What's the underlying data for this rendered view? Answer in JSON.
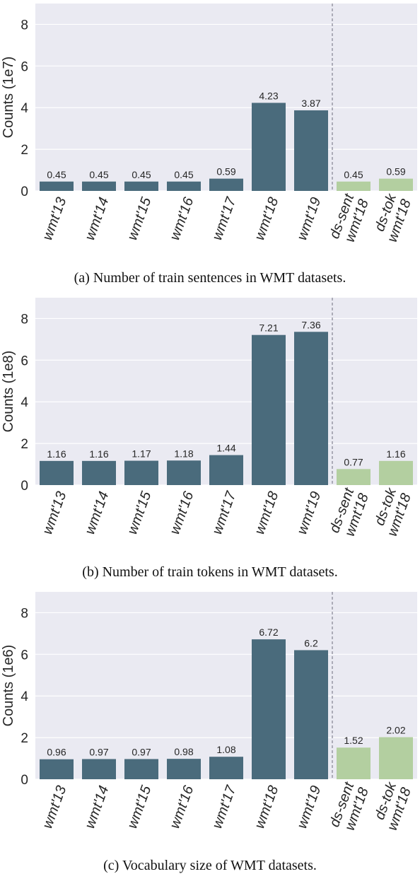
{
  "chart_data": [
    {
      "type": "bar",
      "categories": [
        [
          "wmt'13"
        ],
        [
          "wmt'14"
        ],
        [
          "wmt'15"
        ],
        [
          "wmt'16"
        ],
        [
          "wmt'17"
        ],
        [
          "wmt'18"
        ],
        [
          "wmt'19"
        ],
        [
          "ds-sent",
          "wmt'18"
        ],
        [
          "ds-tok",
          "wmt'18"
        ]
      ],
      "values": [
        0.45,
        0.45,
        0.45,
        0.45,
        0.59,
        4.23,
        3.87,
        0.45,
        0.59
      ],
      "value_labels": [
        "0.45",
        "0.45",
        "0.45",
        "0.45",
        "0.59",
        "4.23",
        "3.87",
        "0.45",
        "0.59"
      ],
      "ylabel": "Counts (1e7)",
      "ylim": [
        0,
        9
      ],
      "yticks": [
        0,
        2,
        4,
        6,
        8
      ],
      "grid": true,
      "caption": "(a) Number of train sentences in WMT datasets."
    },
    {
      "type": "bar",
      "categories": [
        [
          "wmt'13"
        ],
        [
          "wmt'14"
        ],
        [
          "wmt'15"
        ],
        [
          "wmt'16"
        ],
        [
          "wmt'17"
        ],
        [
          "wmt'18"
        ],
        [
          "wmt'19"
        ],
        [
          "ds-sent",
          "wmt'18"
        ],
        [
          "ds-tok",
          "wmt'18"
        ]
      ],
      "values": [
        1.16,
        1.16,
        1.17,
        1.18,
        1.44,
        7.21,
        7.36,
        0.77,
        1.16
      ],
      "value_labels": [
        "1.16",
        "1.16",
        "1.17",
        "1.18",
        "1.44",
        "7.21",
        "7.36",
        "0.77",
        "1.16"
      ],
      "ylabel": "Counts (1e8)",
      "ylim": [
        0,
        9
      ],
      "yticks": [
        0,
        2,
        4,
        6,
        8
      ],
      "grid": true,
      "caption": "(b) Number of train tokens in WMT datasets."
    },
    {
      "type": "bar",
      "categories": [
        [
          "wmt'13"
        ],
        [
          "wmt'14"
        ],
        [
          "wmt'15"
        ],
        [
          "wmt'16"
        ],
        [
          "wmt'17"
        ],
        [
          "wmt'18"
        ],
        [
          "wmt'19"
        ],
        [
          "ds-sent",
          "wmt'18"
        ],
        [
          "ds-tok",
          "wmt'18"
        ]
      ],
      "values": [
        0.96,
        0.97,
        0.97,
        0.98,
        1.08,
        6.72,
        6.2,
        1.52,
        2.02
      ],
      "value_labels": [
        "0.96",
        "0.97",
        "0.97",
        "0.98",
        "1.08",
        "6.72",
        "6.2",
        "1.52",
        "2.02"
      ],
      "ylabel": "Counts (1e6)",
      "ylim": [
        0,
        9
      ],
      "yticks": [
        0,
        2,
        4,
        6,
        8
      ],
      "grid": true,
      "caption": "(c) Vocabulary size of WMT datasets."
    }
  ],
  "colors": {
    "background": "#eaeaf2",
    "grid": "#ffffff",
    "primary_bar": "#4a6b7c",
    "secondary_bar": "#b3cfa0",
    "divider": "#8a8a99",
    "text": "#262626"
  }
}
